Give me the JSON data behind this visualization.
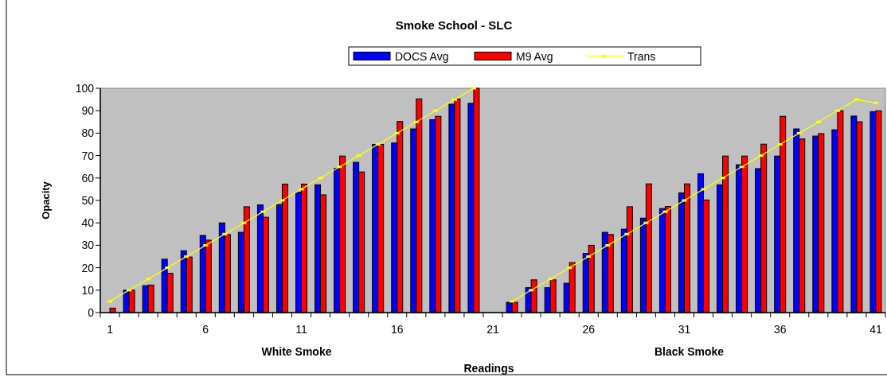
{
  "chart_data": {
    "type": "bar",
    "title": "Smoke School - SLC",
    "xlabel": "Readings",
    "ylabel": "Opacity",
    "categories": [
      "1",
      null,
      null,
      null,
      null,
      "6",
      null,
      null,
      null,
      null,
      "11",
      null,
      null,
      null,
      null,
      "16",
      null,
      null,
      null,
      null,
      "21",
      null,
      null,
      null,
      null,
      "26",
      null,
      null,
      null,
      null,
      "31",
      null,
      null,
      null,
      null,
      "36",
      null,
      null,
      null,
      null,
      "41"
    ],
    "series": [
      {
        "name": "DOCS Avg",
        "color": "#0000ff",
        "values": [
          0,
          10,
          12,
          23.8,
          27.6,
          34.4,
          40,
          35.8,
          48,
          48.2,
          53.7,
          57,
          64.3,
          67,
          75,
          75.6,
          81.9,
          86,
          92.9,
          93.3,
          null,
          4.6,
          11.1,
          11.1,
          13.1,
          26.4,
          35.8,
          37.2,
          42.1,
          46.4,
          53.4,
          61.9,
          57,
          65.9,
          64.2,
          69.8,
          81.9,
          78.7,
          81.5,
          87.6,
          89.6
        ]
      },
      {
        "name": "M9 Avg",
        "color": "#ff0000",
        "values": [
          2,
          10,
          12.3,
          17.5,
          24.8,
          32.3,
          34.8,
          47.2,
          42.5,
          57.3,
          57.3,
          52.5,
          69.8,
          62.7,
          75,
          85.2,
          95.3,
          87.5,
          95.3,
          100,
          null,
          4.6,
          14.6,
          14.6,
          22.3,
          30,
          34.8,
          47.2,
          57.4,
          47.3,
          57.4,
          50.2,
          69.8,
          69.8,
          75.1,
          87.5,
          77.4,
          79.8,
          90,
          85.1,
          90
        ]
      },
      {
        "name": "Trans",
        "type": "line",
        "color": "#ffff00",
        "marker": "square",
        "values": [
          5,
          10,
          15,
          20,
          25,
          30,
          35,
          40,
          45,
          50,
          55,
          60,
          65,
          70,
          75,
          80,
          85,
          90,
          95,
          100,
          null,
          5,
          10,
          15,
          20,
          25,
          30,
          35,
          40,
          45,
          50,
          55,
          60,
          65,
          70,
          75,
          80,
          85,
          90,
          95,
          93.5
        ]
      }
    ],
    "ylim": [
      0,
      100
    ],
    "yticks": [
      0,
      10,
      20,
      30,
      40,
      50,
      60,
      70,
      80,
      90,
      100
    ],
    "grid": false,
    "legend": "top",
    "annotations": [
      "White Smoke",
      "Black Smoke"
    ]
  }
}
